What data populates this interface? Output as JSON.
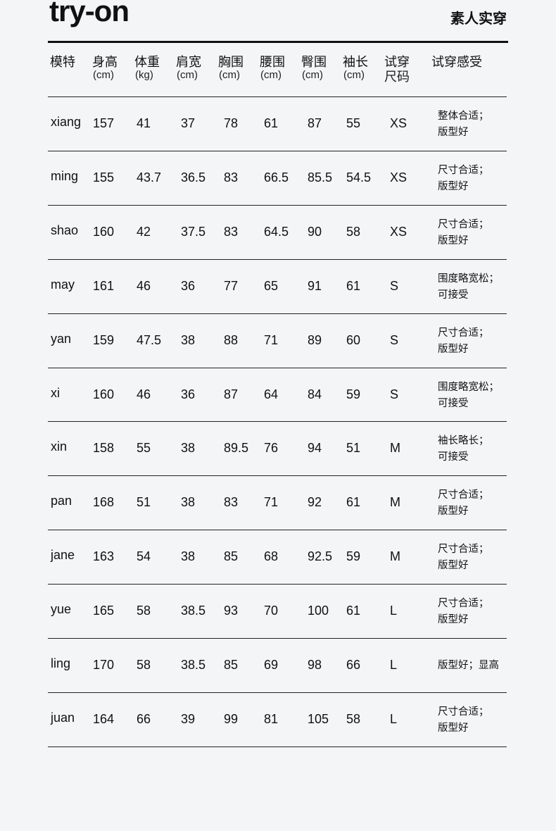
{
  "title": "try-on",
  "subtitle": "素人实穿",
  "headers": [
    {
      "label": "模特",
      "unit": ""
    },
    {
      "label": "身高",
      "unit": "(cm)"
    },
    {
      "label": "体重",
      "unit": "(kg)"
    },
    {
      "label": "肩宽",
      "unit": "(cm)"
    },
    {
      "label": "胸围",
      "unit": "(cm)"
    },
    {
      "label": "腰围",
      "unit": "(cm)"
    },
    {
      "label": "臀围",
      "unit": "(cm)"
    },
    {
      "label": "袖长",
      "unit": "(cm)"
    },
    {
      "label": "试穿",
      "unit": "尺码"
    },
    {
      "label": "试穿感受",
      "unit": ""
    }
  ],
  "rows": [
    {
      "cells": [
        "xiang",
        "157",
        "41",
        "37",
        "78",
        "61",
        "87",
        "55",
        "XS"
      ],
      "feel": [
        "整体合适；",
        "版型好"
      ]
    },
    {
      "cells": [
        "ming",
        "155",
        "43.7",
        "36.5",
        "83",
        "66.5",
        "85.5",
        "54.5",
        "XS"
      ],
      "feel": [
        "尺寸合适；",
        "版型好"
      ]
    },
    {
      "cells": [
        "shao",
        "160",
        "42",
        "37.5",
        "83",
        "64.5",
        "90",
        "58",
        "XS"
      ],
      "feel": [
        "尺寸合适；",
        "版型好"
      ]
    },
    {
      "cells": [
        "may",
        "161",
        "46",
        "36",
        "77",
        "65",
        "91",
        "61",
        "S"
      ],
      "feel": [
        "围度略宽松；",
        "可接受"
      ]
    },
    {
      "cells": [
        "yan",
        "159",
        "47.5",
        "38",
        "88",
        "71",
        "89",
        "60",
        "S"
      ],
      "feel": [
        "尺寸合适；",
        "版型好"
      ]
    },
    {
      "cells": [
        "xi",
        "160",
        "46",
        "36",
        "87",
        "64",
        "84",
        "59",
        "S"
      ],
      "feel": [
        "围度略宽松；",
        "可接受"
      ]
    },
    {
      "cells": [
        "xin",
        "158",
        "55",
        "38",
        "89.5",
        "76",
        "94",
        "51",
        "M"
      ],
      "feel": [
        "袖长略长；",
        "可接受"
      ]
    },
    {
      "cells": [
        "pan",
        "168",
        "51",
        "38",
        "83",
        "71",
        "92",
        "61",
        "M"
      ],
      "feel": [
        "尺寸合适；",
        "版型好"
      ]
    },
    {
      "cells": [
        "jane",
        "163",
        "54",
        "38",
        "85",
        "68",
        "92.5",
        "59",
        "M"
      ],
      "feel": [
        "尺寸合适；",
        "版型好"
      ]
    },
    {
      "cells": [
        "yue",
        "165",
        "58",
        "38.5",
        "93",
        "70",
        "100",
        "61",
        "L"
      ],
      "feel": [
        "尺寸合适；",
        "版型好"
      ]
    },
    {
      "cells": [
        "ling",
        "170",
        "58",
        "38.5",
        "85",
        "69",
        "98",
        "66",
        "L"
      ],
      "feel": [
        "版型好；显高"
      ]
    },
    {
      "cells": [
        "juan",
        "164",
        "66",
        "39",
        "99",
        "81",
        "105",
        "58",
        "L"
      ],
      "feel": [
        "尺寸合适；",
        "版型好"
      ]
    }
  ]
}
